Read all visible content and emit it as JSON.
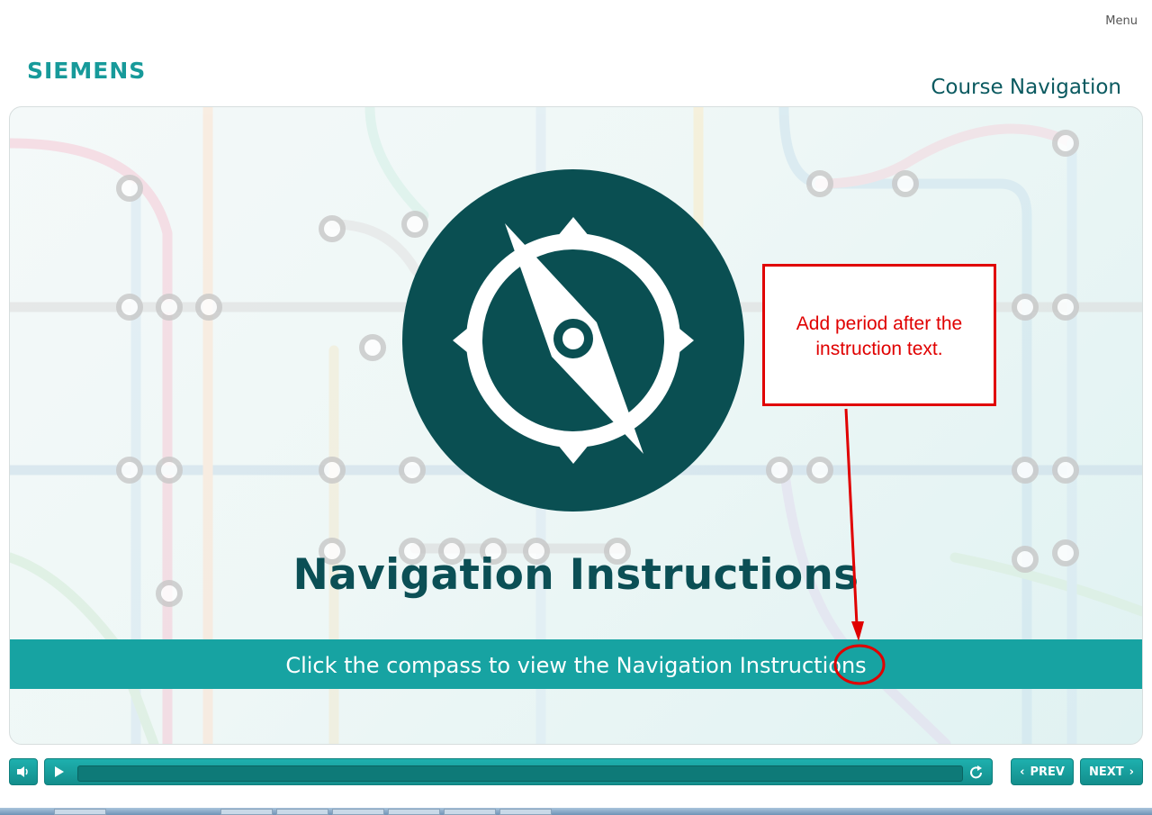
{
  "header": {
    "menu_label": "Menu",
    "logo_text": "SIEMENS",
    "course_title": "Course Navigation"
  },
  "slide": {
    "title": "Navigation Instructions",
    "instruction": "Click the compass to view the Navigation Instructions",
    "compass_icon": "compass-icon"
  },
  "annotation": {
    "callout_text": "Add period after the instruction text.",
    "color": "#e00000"
  },
  "player": {
    "prev_label": "PREV",
    "next_label": "NEXT",
    "progress": 0
  },
  "colors": {
    "brand": "#179a9a",
    "dark_teal": "#0b4f55",
    "band": "#17a3a2"
  }
}
